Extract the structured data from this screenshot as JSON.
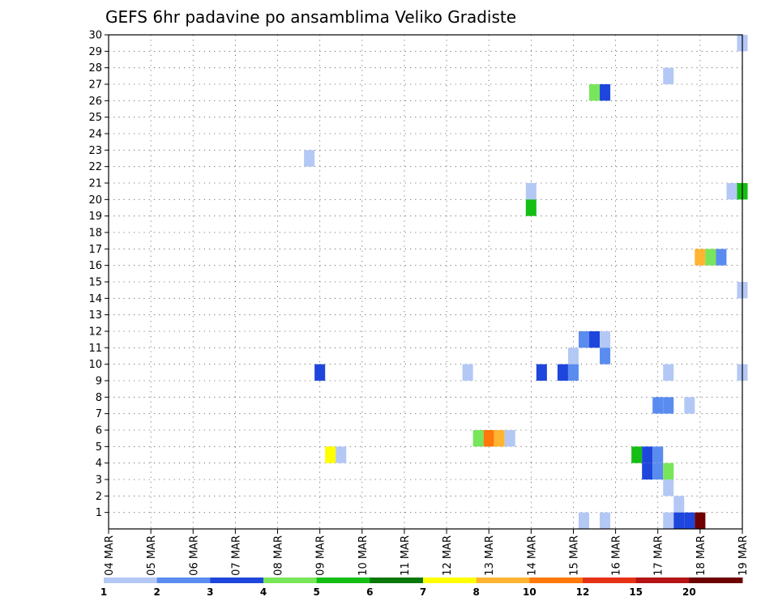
{
  "chart_data": {
    "type": "heatmap",
    "title": "GEFS 6hr padavine po ansamblima Veliko Gradiste",
    "xlabel": "",
    "ylabel": "",
    "y_ticks": [
      1,
      2,
      3,
      4,
      5,
      6,
      7,
      8,
      9,
      10,
      11,
      12,
      13,
      14,
      15,
      16,
      17,
      18,
      19,
      20,
      21,
      22,
      23,
      24,
      25,
      26,
      27,
      28,
      29,
      30
    ],
    "x_ticks": [
      "04 MAR",
      "05 MAR",
      "06 MAR",
      "07 MAR",
      "08 MAR",
      "09 MAR",
      "10 MAR",
      "11 MAR",
      "12 MAR",
      "13 MAR",
      "14 MAR",
      "15 MAR",
      "16 MAR",
      "17 MAR",
      "18 MAR",
      "19 MAR"
    ],
    "x_range_days": [
      0,
      15
    ],
    "y_range": [
      0,
      30
    ],
    "grid": true,
    "legend": {
      "placement": "bottom",
      "labels": [
        "1",
        "2",
        "3",
        "4",
        "5",
        "6",
        "7",
        "8",
        "10",
        "12",
        "15",
        "20"
      ],
      "colors": [
        "#b4c8f5",
        "#5a8cf0",
        "#1e46dc",
        "#78e65a",
        "#14be14",
        "#0a780a",
        "#ffff00",
        "#ffb432",
        "#ff780a",
        "#e63214",
        "#b41414",
        "#6e0000"
      ]
    },
    "cells": [
      {
        "day": 15.0,
        "y": 29,
        "level": 0
      },
      {
        "day": 13.25,
        "y": 27,
        "level": 0
      },
      {
        "day": 11.5,
        "y": 26,
        "level": 3
      },
      {
        "day": 11.75,
        "y": 26,
        "level": 2
      },
      {
        "day": 4.75,
        "y": 22,
        "level": 0
      },
      {
        "day": 10.0,
        "y": 20,
        "level": 0
      },
      {
        "day": 14.75,
        "y": 20,
        "level": 0
      },
      {
        "day": 15.0,
        "y": 20,
        "level": 4
      },
      {
        "day": 10.0,
        "y": 19,
        "level": 4
      },
      {
        "day": 14.0,
        "y": 16,
        "level": 7
      },
      {
        "day": 14.25,
        "y": 16,
        "level": 3
      },
      {
        "day": 14.5,
        "y": 16,
        "level": 1
      },
      {
        "day": 15.0,
        "y": 14,
        "level": 0
      },
      {
        "day": 11.25,
        "y": 11,
        "level": 1
      },
      {
        "day": 11.5,
        "y": 11,
        "level": 2
      },
      {
        "day": 11.75,
        "y": 11,
        "level": 0
      },
      {
        "day": 11.0,
        "y": 10,
        "level": 0
      },
      {
        "day": 11.75,
        "y": 10,
        "level": 1
      },
      {
        "day": 5.0,
        "y": 9,
        "level": 2
      },
      {
        "day": 8.5,
        "y": 9,
        "level": 0
      },
      {
        "day": 10.25,
        "y": 9,
        "level": 2
      },
      {
        "day": 10.75,
        "y": 9,
        "level": 2
      },
      {
        "day": 11.0,
        "y": 9,
        "level": 1
      },
      {
        "day": 13.25,
        "y": 9,
        "level": 0
      },
      {
        "day": 15.0,
        "y": 9,
        "level": 0
      },
      {
        "day": 13.0,
        "y": 7,
        "level": 1
      },
      {
        "day": 13.25,
        "y": 7,
        "level": 1
      },
      {
        "day": 13.75,
        "y": 7,
        "level": 0
      },
      {
        "day": 8.75,
        "y": 5,
        "level": 3
      },
      {
        "day": 9.0,
        "y": 5,
        "level": 8
      },
      {
        "day": 9.25,
        "y": 5,
        "level": 7
      },
      {
        "day": 9.5,
        "y": 5,
        "level": 0
      },
      {
        "day": 5.25,
        "y": 4,
        "level": 6
      },
      {
        "day": 5.5,
        "y": 4,
        "level": 0
      },
      {
        "day": 12.5,
        "y": 4,
        "level": 4
      },
      {
        "day": 12.75,
        "y": 4,
        "level": 2
      },
      {
        "day": 13.0,
        "y": 4,
        "level": 1
      },
      {
        "day": 12.75,
        "y": 3,
        "level": 2
      },
      {
        "day": 13.0,
        "y": 3,
        "level": 1
      },
      {
        "day": 13.25,
        "y": 3,
        "level": 3
      },
      {
        "day": 13.25,
        "y": 2,
        "level": 0
      },
      {
        "day": 13.5,
        "y": 1,
        "level": 0
      },
      {
        "day": 11.25,
        "y": 0,
        "level": 0
      },
      {
        "day": 11.75,
        "y": 0,
        "level": 0
      },
      {
        "day": 13.25,
        "y": 0,
        "level": 0
      },
      {
        "day": 13.5,
        "y": 0,
        "level": 2
      },
      {
        "day": 13.75,
        "y": 0,
        "level": 2
      },
      {
        "day": 14.0,
        "y": 0,
        "level": 11
      }
    ]
  }
}
